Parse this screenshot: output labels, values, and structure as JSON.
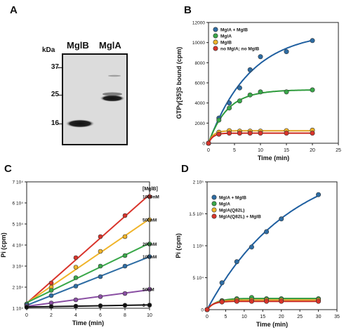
{
  "panels": {
    "A": {
      "letter": "A",
      "kda_label": "kDa",
      "lane_labels": [
        "MglB",
        "MglA"
      ],
      "markers": [
        "37",
        "25",
        "16"
      ]
    }
  },
  "chart_data": [
    {
      "panel": "B",
      "type": "scatter",
      "ylabel": "GTPγ[35]S bound (cpm)",
      "xlabel": "Time (min)",
      "xlim": [
        0,
        25
      ],
      "ylim": [
        0,
        12000
      ],
      "xticks": [
        "0",
        "5",
        "10",
        "15",
        "20",
        "25"
      ],
      "yticks": [
        "0",
        "2000",
        "4000",
        "6000",
        "8000",
        "10000",
        "12000"
      ],
      "legend_position": "top-left",
      "series": [
        {
          "name": "MglA + MglB",
          "color": "#2e6da4",
          "line": "#1f5fa0",
          "x": [
            0,
            2,
            4,
            6,
            8,
            10,
            15,
            20
          ],
          "y": [
            0,
            2500,
            4000,
            5500,
            7300,
            8600,
            9100,
            10200
          ]
        },
        {
          "name": "MglA",
          "color": "#3aa84a",
          "line": "#2e9b3c",
          "x": [
            0,
            2,
            4,
            6,
            8,
            10,
            15,
            20
          ],
          "y": [
            0,
            2300,
            3500,
            4200,
            4800,
            5100,
            5100,
            5300
          ]
        },
        {
          "name": "MglB",
          "color": "#f0b429",
          "line": "#e0a020",
          "x": [
            0,
            2,
            4,
            6,
            8,
            10,
            15,
            20
          ],
          "y": [
            0,
            1100,
            1250,
            1200,
            1200,
            1200,
            1250,
            1300
          ]
        },
        {
          "name": "no MglA; no MglB",
          "color": "#d9342b",
          "line": "#cc2a22",
          "x": [
            0,
            2,
            4,
            6,
            8,
            10,
            15,
            20
          ],
          "y": [
            0,
            900,
            1000,
            1000,
            1000,
            1000,
            1000,
            1000
          ]
        }
      ]
    },
    {
      "panel": "C",
      "type": "line",
      "ylabel": "Pi (cpm)",
      "xlabel": "Time (min)",
      "xlim": [
        0,
        10
      ],
      "ylim": [
        10000,
        70000
      ],
      "xticks": [
        "0",
        "2",
        "4",
        "6",
        "8",
        "10"
      ],
      "yticks": [
        "1 10⁴",
        "2 10⁴",
        "3 10⁴",
        "4 10⁴",
        "5 10⁴",
        "6 10⁴",
        "7 10⁴"
      ],
      "legend_title": "[MglB]",
      "series": [
        {
          "name": "1000nM",
          "color": "#d9342b",
          "x": [
            0,
            2,
            4,
            6,
            8,
            10
          ],
          "y": [
            12000,
            22000,
            34000,
            44000,
            54000,
            63000
          ]
        },
        {
          "name": "500nM",
          "color": "#f0b429",
          "x": [
            0,
            2,
            4,
            6,
            8,
            10
          ],
          "y": [
            12000,
            20000,
            29500,
            37000,
            44000,
            52000
          ]
        },
        {
          "name": "200nM",
          "color": "#3aa84a",
          "x": [
            0,
            2,
            4,
            6,
            8,
            10
          ],
          "y": [
            12000,
            18500,
            24500,
            30000,
            35000,
            40500
          ]
        },
        {
          "name": "100nM",
          "color": "#2e6da4",
          "x": [
            0,
            2,
            4,
            6,
            8,
            10
          ],
          "y": [
            11500,
            16000,
            20500,
            25000,
            30000,
            34500
          ]
        },
        {
          "name": "50nM",
          "color": "#8a4fa3",
          "x": [
            0,
            2,
            4,
            6,
            8,
            10
          ],
          "y": [
            11000,
            12500,
            14000,
            15500,
            17000,
            19000
          ]
        },
        {
          "name": "0",
          "color": "#111111",
          "x": [
            0,
            2,
            4,
            6,
            8,
            10
          ],
          "y": [
            10500,
            10800,
            11000,
            11200,
            11400,
            11500
          ]
        }
      ]
    },
    {
      "panel": "D",
      "type": "scatter",
      "ylabel": "Pi (cpm)",
      "xlabel": "Time (min)",
      "xlim": [
        0,
        35
      ],
      "ylim": [
        0,
        200000
      ],
      "xticks": [
        "0",
        "5",
        "10",
        "15",
        "20",
        "25",
        "30",
        "35"
      ],
      "yticks": [
        "0",
        "5 10⁴",
        "1 10⁵",
        "1.5 10⁵",
        "2 10⁵"
      ],
      "legend_position": "top-left",
      "series": [
        {
          "name": "MglA + MglB",
          "color": "#2e6da4",
          "line": "#1f5fa0",
          "x": [
            0,
            4,
            8,
            12,
            16,
            20,
            30
          ],
          "y": [
            0,
            42000,
            75000,
            98000,
            122000,
            142000,
            180000
          ]
        },
        {
          "name": "MglA",
          "color": "#3aa84a",
          "line": "#2e9b3c",
          "x": [
            0,
            4,
            8,
            12,
            16,
            20,
            30
          ],
          "y": [
            0,
            14000,
            17000,
            19000,
            17000,
            17000,
            17000
          ]
        },
        {
          "name": "MglA(Q82L)",
          "color": "#f0b429",
          "line": "#e0a020",
          "x": [
            0,
            4,
            8,
            12,
            16,
            20,
            30
          ],
          "y": [
            0,
            13000,
            15000,
            15000,
            15000,
            15000,
            15000
          ]
        },
        {
          "name": "MglA(Q82L) + MglB",
          "color": "#d9342b",
          "line": "#cc2a22",
          "x": [
            0,
            4,
            8,
            12,
            16,
            20,
            30
          ],
          "y": [
            0,
            12000,
            13000,
            13000,
            13000,
            13000,
            13000
          ]
        }
      ]
    }
  ]
}
